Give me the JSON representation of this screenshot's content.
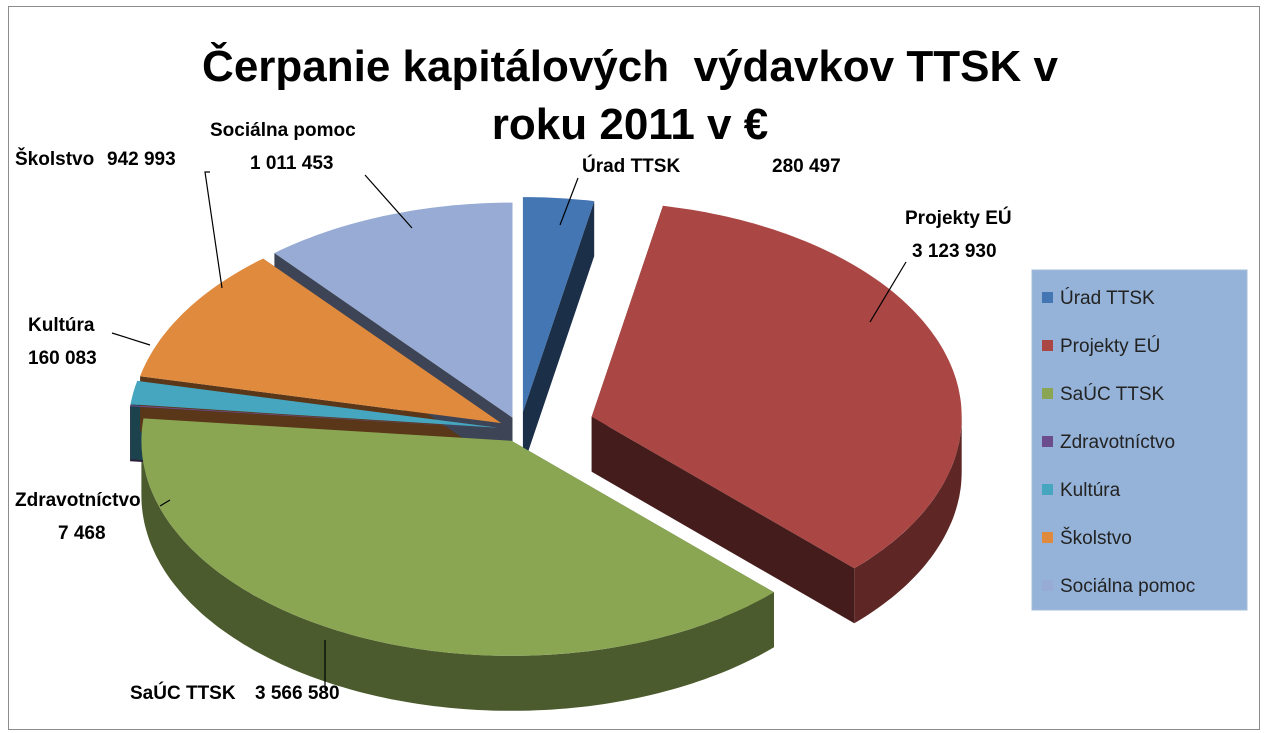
{
  "chart_data": {
    "type": "pie3d",
    "title": "Čerpanie kapitálových  výdavkov TTSK v roku 2011 v €",
    "categories": [
      "Úrad TTSK",
      "Projekty EÚ",
      "SaÚC TTSK",
      "Zdravotníctvo",
      "Kultúra",
      "Školstvo",
      "Sociálna pomoc"
    ],
    "values": [
      280497,
      3123930,
      3566580,
      7468,
      160083,
      942993,
      1011453
    ],
    "value_labels": [
      "280 497",
      "3 123 930",
      "3 566 580",
      "7 468",
      "160 083",
      "942 993",
      "1 011 453"
    ],
    "colors": [
      "#4376b3",
      "#aa4644",
      "#8aa653",
      "#6b4c8c",
      "#46a6c0",
      "#e08a3e",
      "#97abd4"
    ],
    "legend": "right"
  }
}
